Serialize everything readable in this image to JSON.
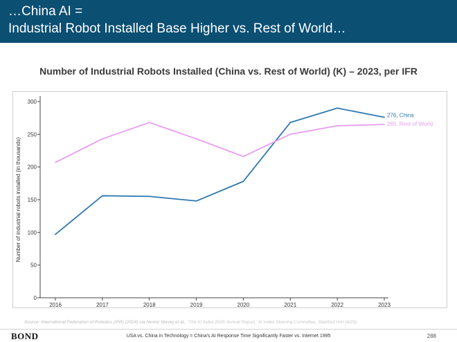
{
  "header": {
    "line1": "…China AI =",
    "line2": "Industrial Robot Installed Base Higher vs. Rest of World…"
  },
  "chart_data": {
    "type": "line",
    "title": "Number of Industrial Robots Installed (China vs. Rest of World) (K) – 2023, per IFR",
    "ylabel": "Number of industrial robots installed (in thousands)",
    "xlabel": "",
    "x": [
      "2016",
      "2017",
      "2018",
      "2019",
      "2020",
      "2021",
      "2022",
      "2023"
    ],
    "ylim": [
      0,
      300
    ],
    "yticks": [
      0,
      50,
      100,
      150,
      200,
      250,
      300
    ],
    "grid": false,
    "series": [
      {
        "name": "China",
        "color": "#2f78b0",
        "values": [
          97,
          156,
          155,
          148,
          178,
          268,
          290,
          276
        ],
        "end_value_label": "276"
      },
      {
        "name": "Rest of World",
        "color": "#e89cf0",
        "values": [
          207,
          243,
          268,
          243,
          216,
          250,
          263,
          265
        ],
        "end_value_label": "265"
      }
    ]
  },
  "source": {
    "lead": "Source: International Federation of Robotics (IFR) (2024) via Nestor Maslej et al., ",
    "rest": "‘The AI Index 2025 Annual Report,’ AI Index Steering Committee, Stanford HAI (4/25)"
  },
  "footer": {
    "brand": "BOND",
    "text": "USA vs. China in Technology = China’s AI Response Time Significantly Faster vs. Internet 1995",
    "page_number": "288"
  }
}
